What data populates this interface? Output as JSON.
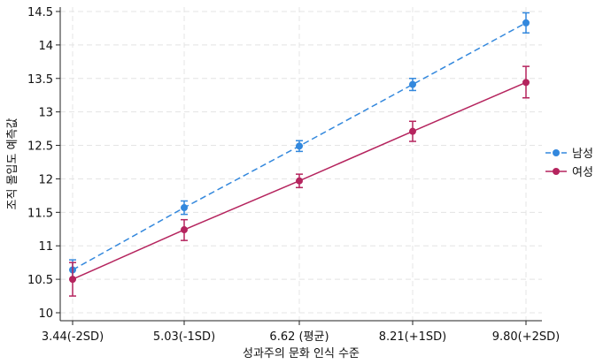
{
  "chart_data": {
    "type": "line",
    "xlabel": "성과주의 문화 인식 수준",
    "ylabel": "조직 몰입도 예측값",
    "categories": [
      "3.44(-2SD)",
      "5.03(-1SD)",
      "6.62 (평균)",
      "8.21(+1SD)",
      "9.80(+2SD)"
    ],
    "ylim": [
      10,
      14.5
    ],
    "yticks": [
      "10",
      "10.5",
      "11",
      "11.5",
      "12",
      "12.5",
      "13",
      "13.5",
      "14",
      "14.5"
    ],
    "grid": true,
    "legend_position": "right",
    "series": [
      {
        "name": "남성",
        "color": "#3388dd",
        "line_style": "dashed",
        "values": [
          10.64,
          11.57,
          12.49,
          13.41,
          14.33
        ],
        "ci_low": [
          10.5,
          11.47,
          12.41,
          13.32,
          14.18
        ],
        "ci_high": [
          10.79,
          11.67,
          12.57,
          13.5,
          14.48
        ]
      },
      {
        "name": "여성",
        "color": "#b5245e",
        "line_style": "solid",
        "values": [
          10.5,
          11.24,
          11.97,
          12.71,
          13.44
        ],
        "ci_low": [
          10.25,
          11.08,
          11.87,
          12.56,
          13.21
        ],
        "ci_high": [
          10.75,
          11.39,
          12.07,
          12.86,
          13.68
        ]
      }
    ]
  }
}
